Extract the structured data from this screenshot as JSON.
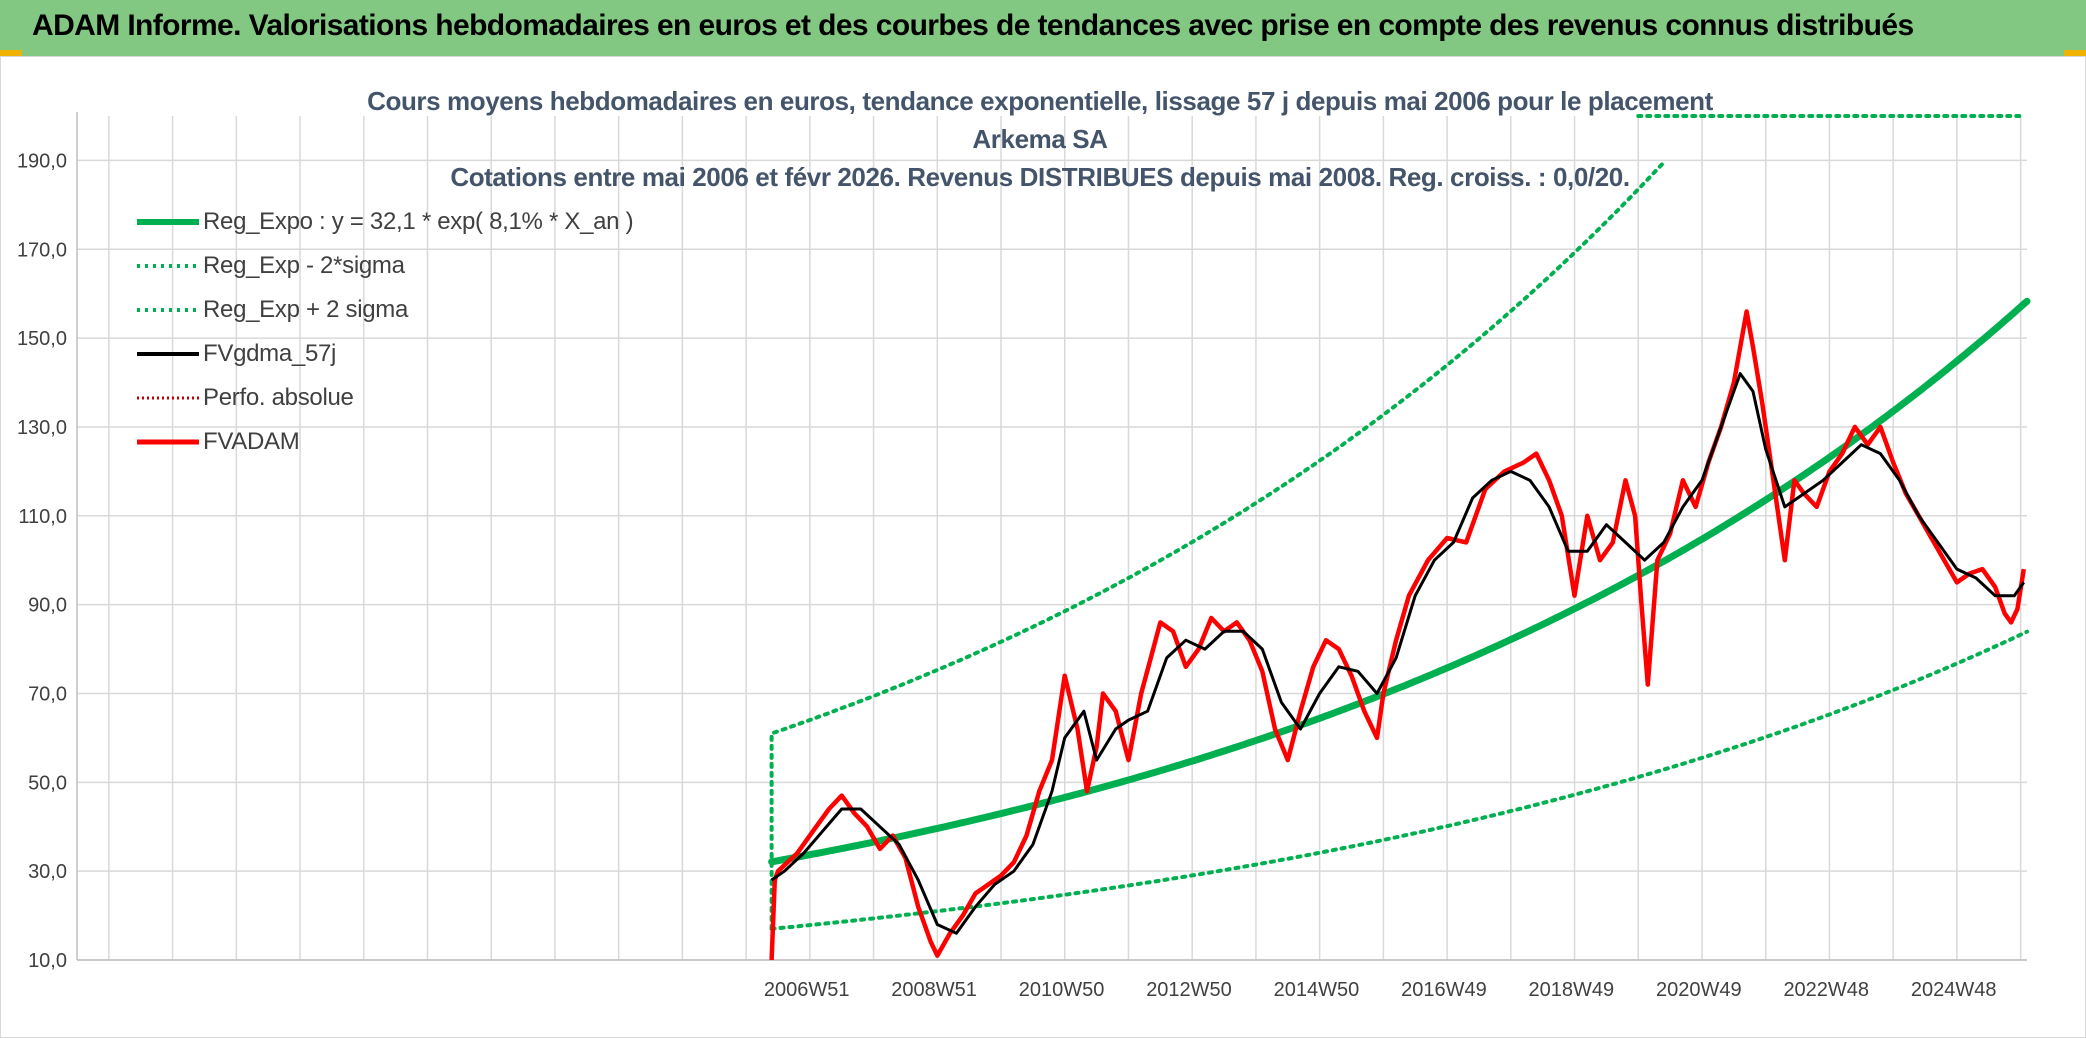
{
  "banner": {
    "title": "ADAM Informe. Valorisations hebdomadaires en euros et des courbes de tendances avec prise en compte des revenus connus distribués"
  },
  "colors": {
    "banner_bg": "#82c882",
    "reg_expo": "#00b050",
    "fvgdma": "#000000",
    "fvadam": "#ff0000",
    "perfo": "#c00000",
    "title": "#44546a",
    "grid": "#d9d9d9"
  },
  "chart_data": {
    "type": "line",
    "title_line1": "Cours moyens hebdomadaires en euros, tendance exponentielle, lissage 57 j depuis mai 2006 pour le placement Arkema SA",
    "title_line2": "Cotations entre mai 2006 et févr 2026. Revenus DISTRIBUES depuis mai 2008. Reg. croiss. : 0,0/20.",
    "ylim": [
      10,
      200
    ],
    "yticks": [
      "10,0",
      "30,0",
      "50,0",
      "70,0",
      "90,0",
      "110,0",
      "130,0",
      "150,0",
      "170,0",
      "190,0"
    ],
    "xticks": [
      "2006W51",
      "2008W51",
      "2010W50",
      "2012W50",
      "2014W50",
      "2016W49",
      "2018W49",
      "2020W49",
      "2022W48",
      "2024W48"
    ],
    "xlim": [
      1995.5,
      2026.1
    ],
    "data_start": 2006.4,
    "grid": true,
    "legend_position": "top-left",
    "legend": [
      {
        "key": "reg_expo",
        "label": "Reg_Expo : y = 32,1 * exp( 8,1% *  X_an )",
        "style": "thick"
      },
      {
        "key": "reg_minus",
        "label": "Reg_Exp - 2*sigma",
        "style": "dotted-green"
      },
      {
        "key": "reg_plus",
        "label": "Reg_Exp + 2 sigma",
        "style": "dotted-green"
      },
      {
        "key": "fvgdma",
        "label": "FVgdma_57j",
        "style": "black"
      },
      {
        "key": "perfo",
        "label": "Perfo. absolue",
        "style": "dotted-red"
      },
      {
        "key": "fvadam",
        "label": "FVADAM",
        "style": "red"
      }
    ],
    "reg_expo": {
      "a": 32.1,
      "rate": 0.081,
      "sigma_factor_plus": 1.9,
      "sigma_factor_minus": 0.53
    },
    "reg_plus_cap": 200,
    "fvadam": {
      "x": [
        2006.4,
        2006.45,
        2006.5,
        2006.8,
        2007.0,
        2007.3,
        2007.5,
        2007.7,
        2007.9,
        2008.1,
        2008.3,
        2008.5,
        2008.7,
        2008.9,
        2009.0,
        2009.2,
        2009.4,
        2009.6,
        2009.8,
        2010.0,
        2010.2,
        2010.4,
        2010.6,
        2010.8,
        2011.0,
        2011.2,
        2011.35,
        2011.5,
        2011.6,
        2011.8,
        2012.0,
        2012.2,
        2012.35,
        2012.5,
        2012.7,
        2012.9,
        2013.1,
        2013.3,
        2013.5,
        2013.7,
        2013.9,
        2014.1,
        2014.3,
        2014.5,
        2014.7,
        2014.9,
        2015.1,
        2015.3,
        2015.5,
        2015.7,
        2015.9,
        2016.0,
        2016.2,
        2016.4,
        2016.7,
        2017.0,
        2017.3,
        2017.6,
        2017.9,
        2018.2,
        2018.4,
        2018.6,
        2018.8,
        2019.0,
        2019.2,
        2019.4,
        2019.6,
        2019.8,
        2019.95,
        2020.05,
        2020.15,
        2020.3,
        2020.5,
        2020.7,
        2020.9,
        2021.1,
        2021.3,
        2021.5,
        2021.7,
        2021.8,
        2021.95,
        2022.1,
        2022.3,
        2022.45,
        2022.6,
        2022.8,
        2023.0,
        2023.2,
        2023.4,
        2023.6,
        2023.8,
        2024.0,
        2024.2,
        2024.4,
        2024.6,
        2024.8,
        2025.0,
        2025.2,
        2025.4,
        2025.6,
        2025.75,
        2025.85,
        2025.95,
        2026.05
      ],
      "y": [
        10,
        28,
        30,
        34,
        38,
        44,
        47,
        43,
        40,
        35,
        38,
        33,
        22,
        14,
        11,
        16,
        20,
        25,
        27,
        29,
        32,
        38,
        48,
        55,
        74,
        62,
        48,
        58,
        70,
        66,
        55,
        70,
        78,
        86,
        84,
        76,
        80,
        87,
        84,
        86,
        82,
        75,
        62,
        55,
        66,
        76,
        82,
        80,
        74,
        66,
        60,
        70,
        82,
        92,
        100,
        105,
        104,
        116,
        120,
        122,
        124,
        118,
        110,
        92,
        110,
        100,
        104,
        118,
        110,
        90,
        72,
        100,
        106,
        118,
        112,
        122,
        130,
        140,
        156,
        148,
        135,
        120,
        100,
        118,
        115,
        112,
        120,
        124,
        130,
        126,
        130,
        122,
        115,
        110,
        105,
        100,
        95,
        97,
        98,
        94,
        88,
        86,
        89,
        98
      ]
    },
    "fvgdma": {
      "x": [
        2006.4,
        2006.6,
        2006.9,
        2007.2,
        2007.5,
        2007.8,
        2008.1,
        2008.4,
        2008.7,
        2009.0,
        2009.3,
        2009.6,
        2009.9,
        2010.2,
        2010.5,
        2010.8,
        2011.0,
        2011.3,
        2011.5,
        2011.8,
        2012.0,
        2012.3,
        2012.6,
        2012.9,
        2013.2,
        2013.5,
        2013.8,
        2014.1,
        2014.4,
        2014.7,
        2015.0,
        2015.3,
        2015.6,
        2015.9,
        2016.2,
        2016.5,
        2016.8,
        2017.1,
        2017.4,
        2017.7,
        2018.0,
        2018.3,
        2018.6,
        2018.9,
        2019.2,
        2019.5,
        2019.8,
        2020.1,
        2020.4,
        2020.7,
        2021.0,
        2021.3,
        2021.6,
        2021.8,
        2022.0,
        2022.3,
        2022.6,
        2022.9,
        2023.2,
        2023.5,
        2023.8,
        2024.1,
        2024.4,
        2024.7,
        2025.0,
        2025.3,
        2025.6,
        2025.9,
        2026.05
      ],
      "y": [
        28,
        30,
        34,
        39,
        44,
        44,
        40,
        36,
        28,
        18,
        16,
        22,
        27,
        30,
        36,
        48,
        60,
        66,
        55,
        62,
        64,
        66,
        78,
        82,
        80,
        84,
        84,
        80,
        68,
        62,
        70,
        76,
        75,
        70,
        78,
        92,
        100,
        104,
        114,
        118,
        120,
        118,
        112,
        102,
        102,
        108,
        104,
        100,
        104,
        112,
        118,
        130,
        142,
        138,
        125,
        112,
        115,
        118,
        122,
        126,
        124,
        118,
        110,
        104,
        98,
        96,
        92,
        92,
        95
      ]
    }
  }
}
